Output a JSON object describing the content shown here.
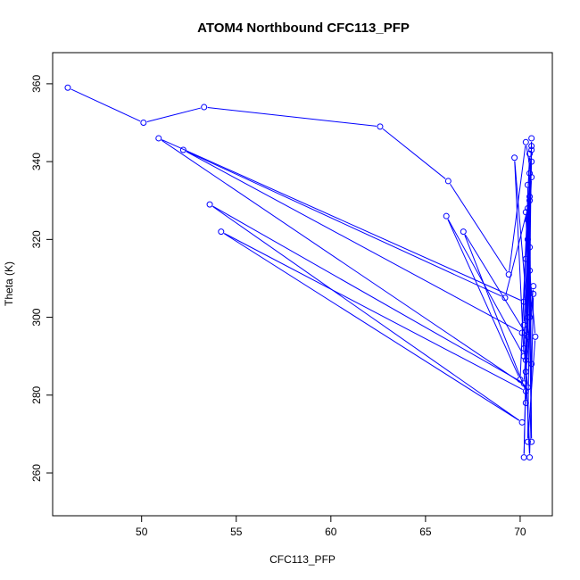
{
  "chart_data": {
    "type": "line",
    "title": "ATOM4 Northbound CFC113_PFP",
    "xlabel": "CFC113_PFP",
    "ylabel": "Theta (K)",
    "xlim": [
      45.3,
      71.7
    ],
    "ylim": [
      249,
      368
    ],
    "xticks": [
      50,
      55,
      60,
      65,
      70
    ],
    "yticks": [
      260,
      280,
      300,
      320,
      340,
      360
    ],
    "grid": false,
    "legend": "none",
    "series_color": "#0000ff",
    "series": [
      {
        "x": [
          46.1,
          50.1,
          53.3,
          62.6,
          66.2,
          69.4,
          70.3,
          70.6,
          70.2,
          70.4,
          50.9,
          70.2,
          70.5,
          70.1,
          52.2,
          69.2,
          70.4,
          70.0,
          66.1,
          70.2,
          69.7,
          70.4,
          70.2,
          53.6,
          70.1,
          54.2,
          70.3,
          67.0,
          70.4,
          70.5,
          70.3,
          70.6,
          70.2,
          70.5,
          70.3,
          70.4,
          70.6,
          70.2,
          70.5,
          70.7,
          70.3,
          70.5,
          70.6,
          70.4,
          70.8,
          70.5,
          70.3,
          70.6,
          70.4,
          70.5,
          70.7,
          70.3,
          70.4,
          70.6,
          70.5,
          70.6
        ],
        "y": [
          359,
          350,
          354,
          349,
          335,
          311,
          345,
          336,
          292,
          282,
          346,
          304,
          342,
          296,
          343,
          305,
          328,
          284,
          326,
          290,
          341,
          300,
          283,
          329,
          273,
          322,
          281,
          322,
          295,
          331,
          315,
          344,
          264,
          330,
          278,
          320,
          340,
          298,
          264,
          306,
          286,
          318,
          346,
          268,
          295,
          312,
          327,
          288,
          334,
          300,
          308,
          289,
          325,
          268,
          337,
          343
        ]
      }
    ]
  }
}
